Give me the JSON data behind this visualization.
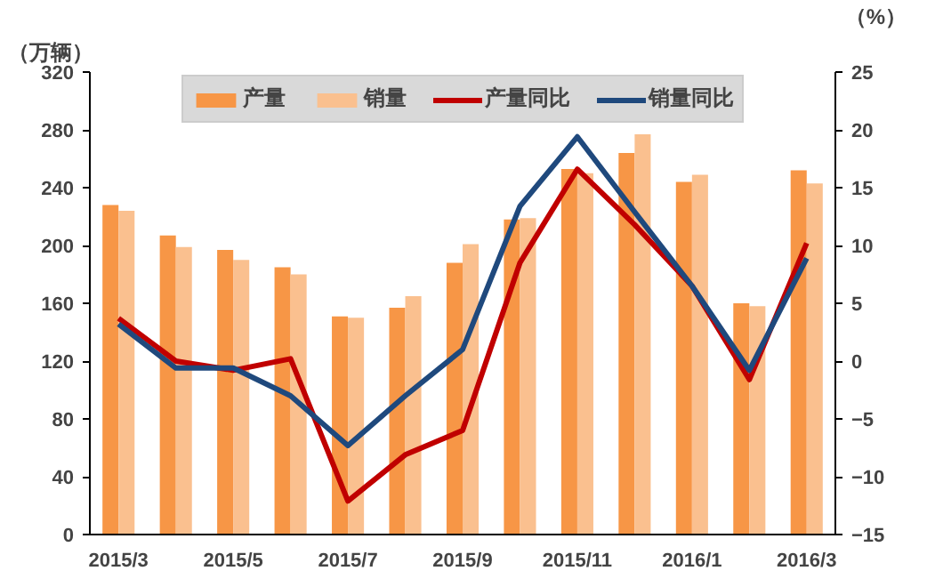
{
  "chart_data": {
    "type": "bar",
    "ylabel": "（万辆）",
    "y2label": "（%）",
    "categories": [
      "2015/3",
      null,
      "2015/5",
      null,
      "2015/7",
      null,
      "2015/9",
      null,
      "2015/11",
      null,
      "2016/1",
      null,
      "2016/3"
    ],
    "series": [
      {
        "name": "产量",
        "color": "#f79646",
        "values": [
          228,
          207,
          197,
          185,
          151,
          157,
          188,
          218,
          253,
          264,
          244,
          160,
          252
        ]
      },
      {
        "name": "销量",
        "color": "#fac08f",
        "values": [
          224,
          199,
          190,
          180,
          150,
          165,
          201,
          219,
          250,
          277,
          249,
          158,
          243
        ]
      },
      {
        "name": "产量同比",
        "type": "line",
        "axis": "y2",
        "color": "#c00000",
        "values": [
          3.7,
          0,
          -0.8,
          0.2,
          -12.1,
          -8.1,
          -6,
          8.5,
          16.6,
          11.8,
          6.5,
          -1.6,
          10.2
        ]
      },
      {
        "name": "销量同比",
        "type": "line",
        "axis": "y2",
        "color": "#1f497d",
        "values": [
          3.2,
          -0.6,
          -0.6,
          -3,
          -7.3,
          -3,
          1,
          13.4,
          19.4,
          12.9,
          6.5,
          -0.8,
          8.9
        ]
      }
    ],
    "ylim": [
      0,
      320
    ],
    "yticks": [
      0,
      40,
      80,
      120,
      160,
      200,
      240,
      280,
      320
    ],
    "y2lim": [
      -15,
      25
    ],
    "y2ticks": [
      -15,
      -10,
      -5,
      0,
      5,
      10,
      15,
      20,
      25
    ],
    "grid": false,
    "legend": "top"
  }
}
